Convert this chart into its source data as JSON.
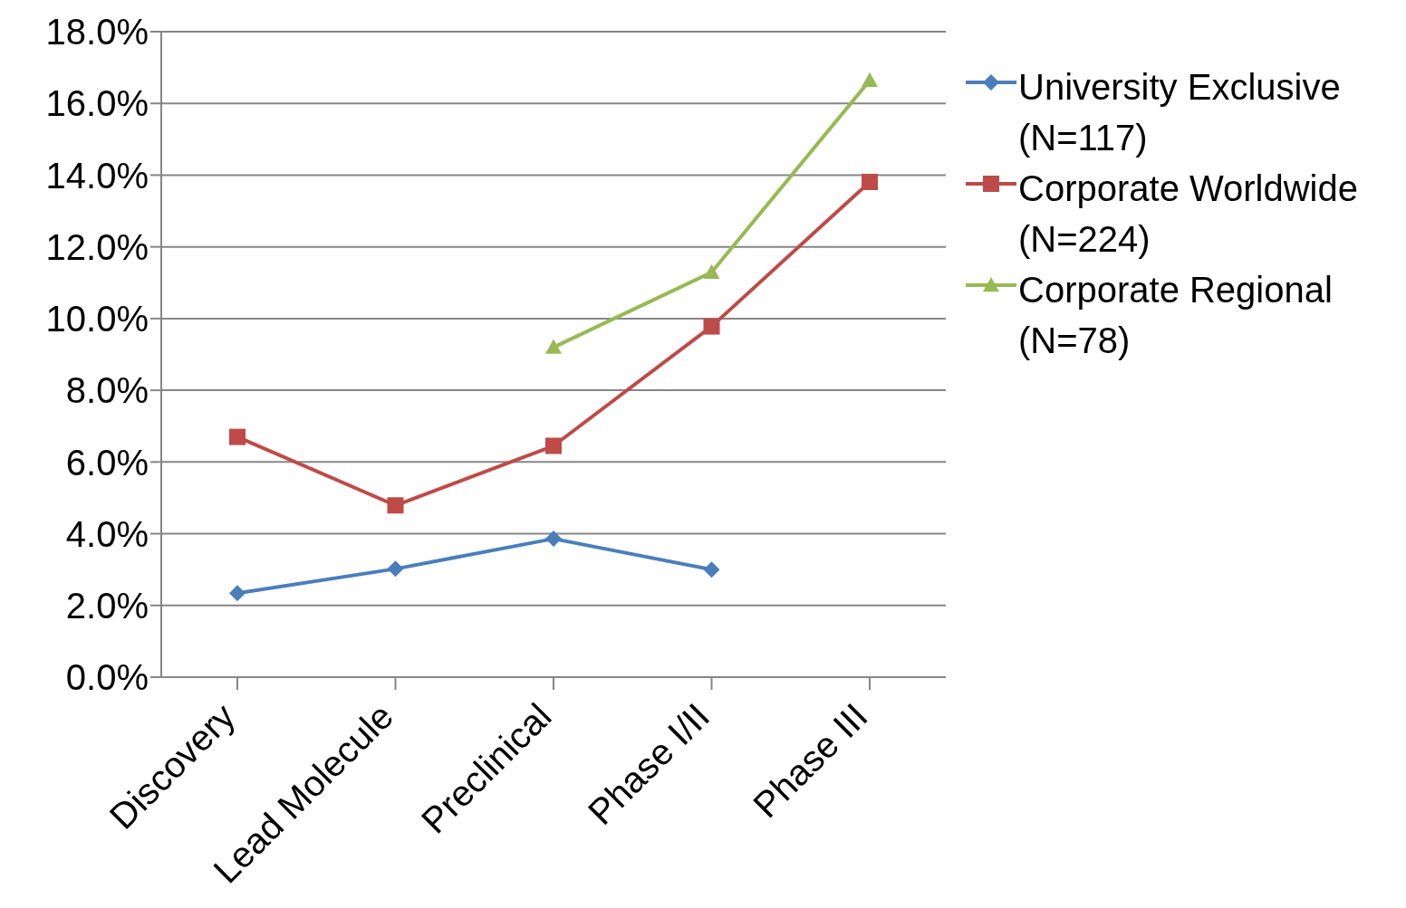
{
  "chart_data": {
    "type": "line",
    "categories": [
      "Discovery",
      "Lead Molecule",
      "Preclinical",
      "Phase I/II",
      "Phase III"
    ],
    "series": [
      {
        "name": "University Exclusive (N=117)",
        "color": "#4a7ebb",
        "marker": "diamond",
        "values": [
          2.34,
          3.02,
          3.86,
          3.0,
          null
        ]
      },
      {
        "name": "Corporate Worldwide (N=224)",
        "color": "#be4b48",
        "marker": "square",
        "values": [
          6.7,
          4.79,
          6.45,
          9.78,
          13.81
        ]
      },
      {
        "name": "Corporate Regional (N=78)",
        "color": "#98b954",
        "marker": "triangle",
        "values": [
          null,
          null,
          9.2,
          11.29,
          16.64
        ]
      }
    ],
    "ylim": [
      0,
      18
    ],
    "yticks": [
      {
        "value": 0,
        "label": "0.0%"
      },
      {
        "value": 2,
        "label": "2.0%"
      },
      {
        "value": 4,
        "label": "4.0%"
      },
      {
        "value": 6,
        "label": "6.0%"
      },
      {
        "value": 8,
        "label": "8.0%"
      },
      {
        "value": 10,
        "label": "10.0%"
      },
      {
        "value": 12,
        "label": "12.0%"
      },
      {
        "value": 14,
        "label": "14.0%"
      },
      {
        "value": 16,
        "label": "16.0%"
      },
      {
        "value": 18,
        "label": "18.0%"
      }
    ],
    "grid": "y",
    "legend": "right",
    "line_style": "solid"
  }
}
